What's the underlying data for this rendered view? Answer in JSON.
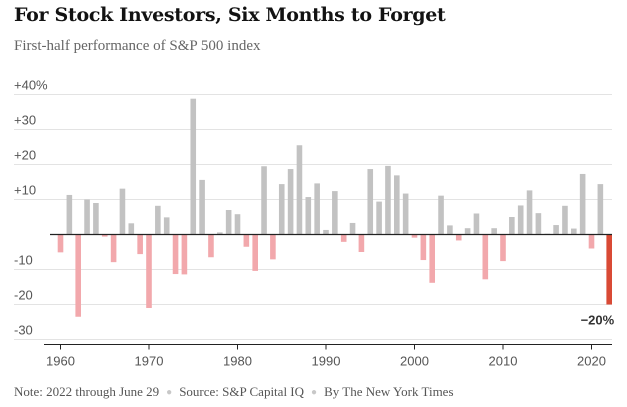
{
  "title": "For Stock Investors, Six Months to Forget",
  "subtitle": "First-half performance of S&P 500 index",
  "footer": {
    "note": "Note: 2022 through June 29",
    "source": "Source: S&P Capital IQ",
    "credit": "By The New York Times"
  },
  "colors": {
    "positive": "#c2c2c2",
    "negative": "#f2a8ac",
    "highlight": "#d94a35",
    "axis": "#222222",
    "grid": "#e3e3e3"
  },
  "chart_data": {
    "type": "bar",
    "grid": true,
    "ylim": [
      -33,
      42
    ],
    "y_ticks": [
      {
        "value": 40,
        "label": "+40%"
      },
      {
        "value": 30,
        "label": "+30"
      },
      {
        "value": 20,
        "label": "+20"
      },
      {
        "value": 10,
        "label": "+10"
      },
      {
        "value": -10,
        "label": "-10"
      },
      {
        "value": -20,
        "label": "-20"
      },
      {
        "value": -30,
        "label": "-30"
      }
    ],
    "x_ticks": [
      {
        "value": 1960,
        "label": "1960"
      },
      {
        "value": 1970,
        "label": "1970"
      },
      {
        "value": 1980,
        "label": "1980"
      },
      {
        "value": 1990,
        "label": "1990"
      },
      {
        "value": 2000,
        "label": "2000"
      },
      {
        "value": 2010,
        "label": "2010"
      },
      {
        "value": 2020,
        "label": "2020"
      }
    ],
    "years": [
      1960,
      1961,
      1962,
      1963,
      1964,
      1965,
      1966,
      1967,
      1968,
      1969,
      1970,
      1971,
      1972,
      1973,
      1974,
      1975,
      1976,
      1977,
      1978,
      1979,
      1980,
      1981,
      1982,
      1983,
      1984,
      1985,
      1986,
      1987,
      1988,
      1989,
      1990,
      1991,
      1992,
      1993,
      1994,
      1995,
      1996,
      1997,
      1998,
      1999,
      2000,
      2001,
      2002,
      2003,
      2004,
      2005,
      2006,
      2007,
      2008,
      2009,
      2010,
      2011,
      2012,
      2013,
      2014,
      2015,
      2016,
      2017,
      2018,
      2019,
      2020,
      2021,
      2022
    ],
    "values": [
      -5.1,
      11.3,
      -23.5,
      10.0,
      9.0,
      -0.6,
      -7.9,
      13.1,
      3.2,
      -5.6,
      -21.0,
      8.2,
      4.9,
      -11.3,
      -11.4,
      38.8,
      15.6,
      -6.5,
      0.6,
      7.0,
      5.8,
      -3.5,
      -10.4,
      19.5,
      -7.1,
      14.4,
      18.7,
      25.5,
      10.7,
      14.6,
      1.3,
      12.4,
      -2.1,
      3.3,
      -5.0,
      18.7,
      9.4,
      19.6,
      16.9,
      11.7,
      -0.9,
      -7.3,
      -13.8,
      11.1,
      2.6,
      -1.7,
      1.8,
      6.0,
      -12.8,
      1.8,
      -7.6,
      5.0,
      8.3,
      12.6,
      6.1,
      0.2,
      2.7,
      8.2,
      1.7,
      17.3,
      -4.0,
      14.4,
      -20.0
    ],
    "annotation": {
      "year": 2022,
      "label": "−20%"
    }
  }
}
